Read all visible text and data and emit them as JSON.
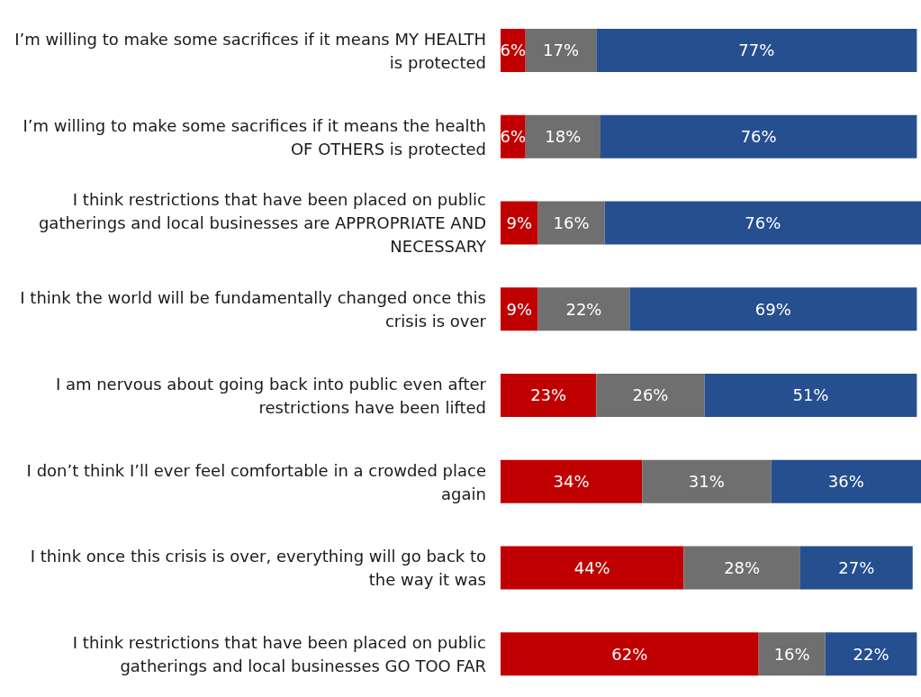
{
  "chart_data": {
    "type": "bar",
    "orientation": "horizontal",
    "stacked": true,
    "grid": false,
    "legend": false,
    "categories": [
      "I’m willing to make some sacrifices if it means MY HEALTH is protected",
      "I’m willing to make some sacrifices if it means the health OF OTHERS is protected",
      "I think restrictions that have been placed on public gatherings and local businesses are APPROPRIATE AND NECESSARY",
      "I think the world will be fundamentally changed once this crisis is over",
      "I am nervous about going back into public even after restrictions have been lifted",
      "I don’t think I’ll ever feel comfortable in a crowded place again",
      "I think once this crisis is over, everything will go back to the way it was",
      "I think restrictions that have been placed on public gatherings and local businesses GO TOO FAR"
    ],
    "series": [
      {
        "color": "#c00000",
        "values": [
          6,
          6,
          9,
          9,
          23,
          34,
          44,
          62
        ],
        "value_labels": [
          "6%",
          "6%",
          "9%",
          "9%",
          "23%",
          "34%",
          "44%",
          "62%"
        ]
      },
      {
        "color": "#6f6f6f",
        "values": [
          17,
          18,
          16,
          22,
          26,
          31,
          28,
          16
        ],
        "value_labels": [
          "17%",
          "18%",
          "16%",
          "22%",
          "26%",
          "31%",
          "28%",
          "16%"
        ]
      },
      {
        "color": "#264f8f",
        "values": [
          77,
          76,
          76,
          69,
          51,
          36,
          27,
          22
        ],
        "value_labels": [
          "77%",
          "76%",
          "76%",
          "69%",
          "51%",
          "36%",
          "27%",
          "22%"
        ]
      }
    ]
  }
}
